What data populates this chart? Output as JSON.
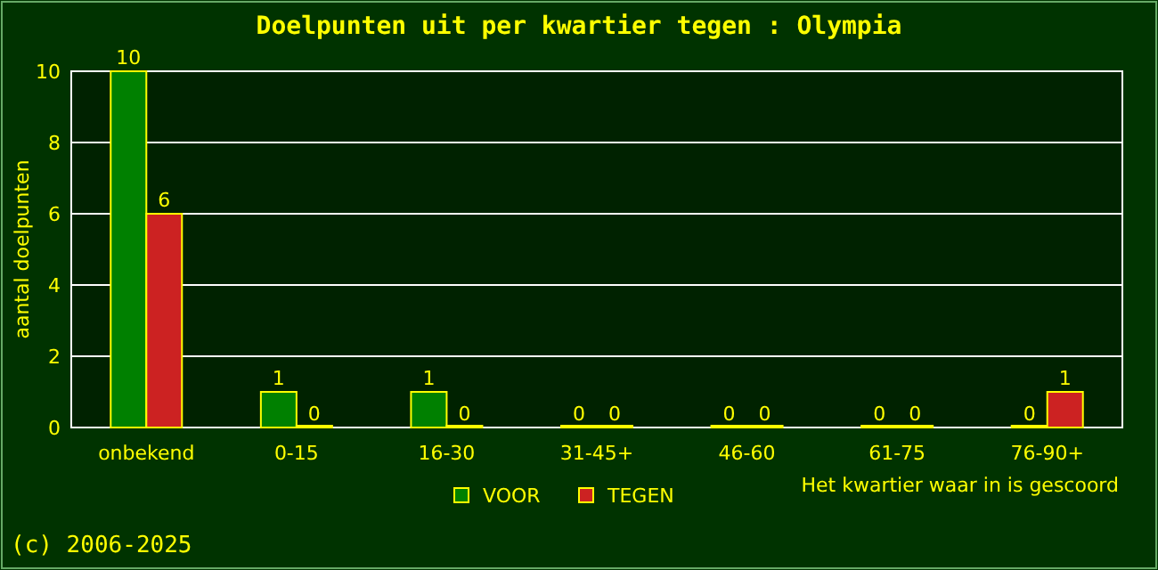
{
  "chart_data": {
    "type": "bar",
    "title": "Doelpunten uit per kwartier tegen : Olympia",
    "xlabel": "Het kwartier waar in is gescoord",
    "ylabel": "aantal doelpunten",
    "categories": [
      "onbekend",
      "0-15",
      "16-30",
      "31-45+",
      "46-60",
      "61-75",
      "76-90+"
    ],
    "series": [
      {
        "name": "VOOR",
        "color": "#008000",
        "values": [
          10,
          1,
          1,
          0,
          0,
          0,
          0
        ]
      },
      {
        "name": "TEGEN",
        "color": "#cc2222",
        "values": [
          6,
          0,
          0,
          0,
          0,
          0,
          1
        ]
      }
    ],
    "ylim": [
      0,
      10
    ],
    "yticks": [
      0,
      2,
      4,
      6,
      8,
      10
    ],
    "grid": "y",
    "legend": "bottom",
    "data_labels": true,
    "annotations": [
      "(c) 2006-2025"
    ]
  }
}
